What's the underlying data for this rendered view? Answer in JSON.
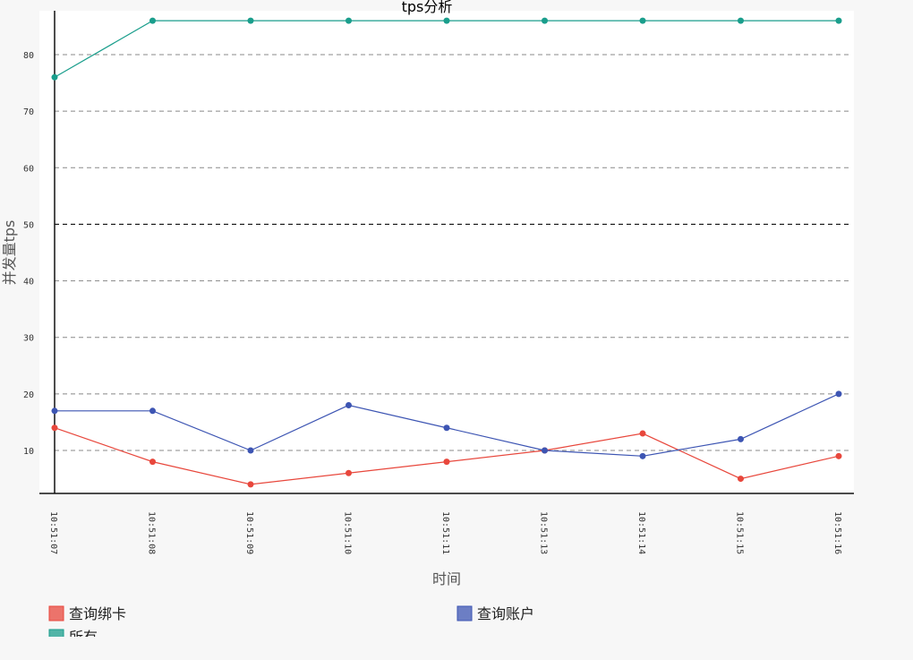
{
  "chart_data": {
    "type": "line",
    "title": "tps分析",
    "xlabel": "时间",
    "ylabel": "并发量tps",
    "categories": [
      "10:51:07",
      "10:51:08",
      "10:51:09",
      "10:51:10",
      "10:51:11",
      "10:51:13",
      "10:51:14",
      "10:51:15",
      "10:51:16"
    ],
    "yticks": [
      10,
      20,
      30,
      40,
      50,
      60,
      70,
      80
    ],
    "ylim": [
      2,
      87
    ],
    "grid": "horizontal dashed",
    "legend_position": "bottom",
    "series": [
      {
        "name": "查询绑卡",
        "color": "#e8473c",
        "values": [
          14,
          8,
          4,
          6,
          8,
          10,
          13,
          5,
          9
        ]
      },
      {
        "name": "查询账户",
        "color": "#3d55b3",
        "values": [
          17,
          17,
          10,
          18,
          14,
          10,
          9,
          12,
          20
        ]
      },
      {
        "name": "所有",
        "color": "#1a9e8c",
        "values": [
          76,
          86,
          86,
          86,
          86,
          86,
          86,
          86,
          86
        ]
      }
    ]
  }
}
